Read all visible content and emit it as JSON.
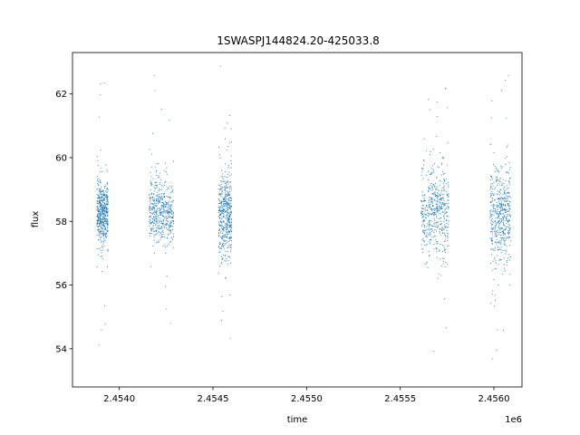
{
  "chart_data": {
    "type": "scatter",
    "title": "1SWASPJ144824.20-425033.8",
    "xlabel": "time",
    "ylabel": "flux",
    "x_offset_label": "1e6",
    "xlim": [
      2.45375,
      2.45615
    ],
    "ylim": [
      52.8,
      63.3
    ],
    "x_ticks": [
      2.454,
      2.4545,
      2.455,
      2.4555,
      2.456
    ],
    "x_tick_labels": [
      "2.4540",
      "2.4545",
      "2.4550",
      "2.4555",
      "2.4560"
    ],
    "y_ticks": [
      54,
      56,
      58,
      60,
      62
    ],
    "y_tick_labels": [
      "54",
      "56",
      "58",
      "60",
      "62"
    ],
    "grid": false,
    "legend": "none",
    "marker_color": "#1f77b4",
    "series": [
      {
        "clusters": [
          {
            "x_range": [
              2.45388,
              2.45394
            ],
            "median": 58.3,
            "core_range": [
              57.3,
              59.3
            ],
            "extreme_range": [
              53.7,
              63.1
            ]
          },
          {
            "x_range": [
              2.45416,
              2.45429
            ],
            "median": 58.3,
            "core_range": [
              57.2,
              59.3
            ],
            "extreme_range": [
              53.4,
              63.0
            ]
          },
          {
            "x_range": [
              2.45453,
              2.4546
            ],
            "median": 58.2,
            "core_range": [
              57.0,
              59.6
            ],
            "extreme_range": [
              53.3,
              63.1
            ]
          },
          {
            "x_range": [
              2.45561,
              2.45576
            ],
            "median": 58.3,
            "core_range": [
              57.0,
              59.9
            ],
            "extreme_range": [
              53.3,
              63.1
            ]
          },
          {
            "x_range": [
              2.45598,
              2.45609
            ],
            "median": 58.2,
            "core_range": [
              56.9,
              59.9
            ],
            "extreme_range": [
              53.3,
              63.1
            ]
          }
        ]
      }
    ]
  }
}
